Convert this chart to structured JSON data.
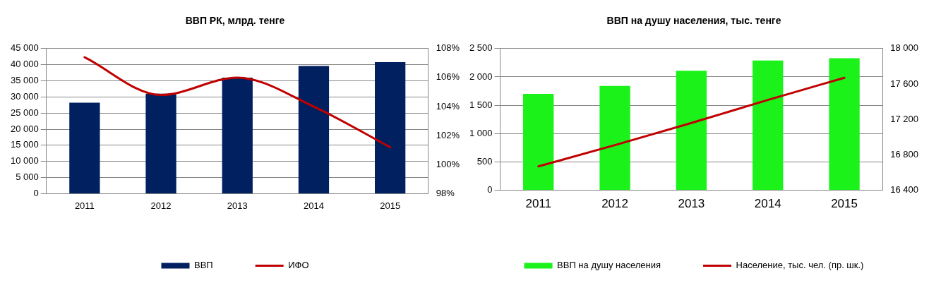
{
  "chart_data": [
    {
      "type": "bar",
      "title": "ВВП РК, млрд. тенге",
      "categories": [
        "2011",
        "2012",
        "2013",
        "2014",
        "2015"
      ],
      "series": [
        {
          "name": "ВВП",
          "color": "#002060",
          "values": [
            28200,
            31000,
            36000,
            39600,
            40800
          ]
        },
        {
          "name": "ИФО",
          "type": "line",
          "axis": "y2",
          "color": "#c00000",
          "values": [
            107.4,
            104.8,
            106.0,
            104.0,
            101.2
          ]
        }
      ],
      "ylim": [
        0,
        45000
      ],
      "yticks": [
        {
          "value": 0,
          "label": "0"
        },
        {
          "value": 5000,
          "label": "5 000"
        },
        {
          "value": 10000,
          "label": "10 000"
        },
        {
          "value": 15000,
          "label": "15 000"
        },
        {
          "value": 20000,
          "label": "20 000"
        },
        {
          "value": 25000,
          "label": "25 000"
        },
        {
          "value": 30000,
          "label": "30 000"
        },
        {
          "value": 35000,
          "label": "35 000"
        },
        {
          "value": 40000,
          "label": "40 000"
        },
        {
          "value": 45000,
          "label": "45 000"
        }
      ],
      "y2lim": [
        98,
        108
      ],
      "y2ticks": [
        {
          "value": 98,
          "label": "98%"
        },
        {
          "value": 100,
          "label": "100%"
        },
        {
          "value": 102,
          "label": "102%"
        },
        {
          "value": 104,
          "label": "104%"
        },
        {
          "value": 106,
          "label": "106%"
        },
        {
          "value": 108,
          "label": "108%"
        }
      ],
      "grid": "y",
      "legend": "bottom"
    },
    {
      "type": "bar",
      "title": "ВВП на душу населения, тыс. тенге",
      "categories": [
        "2011",
        "2012",
        "2013",
        "2014",
        "2015"
      ],
      "series": [
        {
          "name": "ВВП на душу населения",
          "color": "#1af21a",
          "values": [
            1700,
            1840,
            2110,
            2290,
            2330
          ]
        },
        {
          "name": "Население, тыс. чел. (пр. шк.)",
          "type": "line",
          "axis": "y2",
          "color": "#c00000",
          "values": [
            16670,
            16910,
            17160,
            17420,
            17670
          ]
        }
      ],
      "ylim": [
        0,
        2500
      ],
      "yticks": [
        {
          "value": 0,
          "label": "0"
        },
        {
          "value": 500,
          "label": "500"
        },
        {
          "value": 1000,
          "label": "1 000"
        },
        {
          "value": 1500,
          "label": "1 500"
        },
        {
          "value": 2000,
          "label": "2 000"
        },
        {
          "value": 2500,
          "label": "2 500"
        }
      ],
      "y2lim": [
        16400,
        18000
      ],
      "y2ticks": [
        {
          "value": 16400,
          "label": "16 400"
        },
        {
          "value": 16800,
          "label": "16 800"
        },
        {
          "value": 17200,
          "label": "17 200"
        },
        {
          "value": 17600,
          "label": "17 600"
        },
        {
          "value": 18000,
          "label": "18 000"
        }
      ],
      "grid": "y",
      "legend": "bottom"
    }
  ]
}
